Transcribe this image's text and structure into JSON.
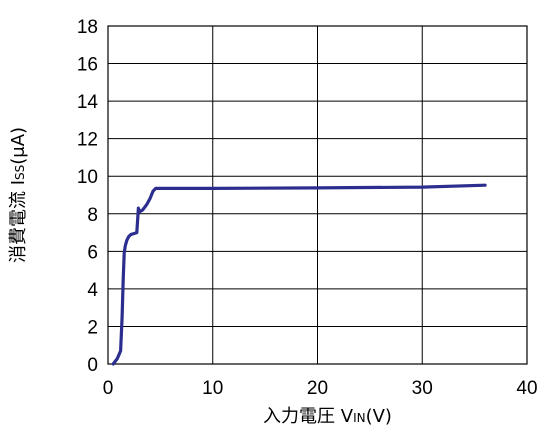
{
  "chart_data": {
    "type": "line",
    "title": "",
    "xlabel_prefix": "入力電圧 V",
    "xlabel_sub": "IN",
    "xlabel_suffix": "(V)",
    "ylabel_prefix": "消費電流 I",
    "ylabel_sub": "SS",
    "ylabel_suffix": "(μA)",
    "xlim": [
      0,
      40
    ],
    "ylim": [
      0,
      18
    ],
    "xticks": [
      0,
      10,
      20,
      30,
      40
    ],
    "yticks": [
      0,
      2,
      4,
      6,
      8,
      10,
      12,
      14,
      16,
      18
    ],
    "xtick_labels": [
      "0",
      "10",
      "20",
      "30",
      "40"
    ],
    "ytick_labels": [
      "0",
      "2",
      "4",
      "6",
      "8",
      "10",
      "12",
      "14",
      "16",
      "18"
    ],
    "grid": true,
    "series": [
      {
        "color": "#2b2e8f",
        "x": [
          0.5,
          0.9,
          1.2,
          1.35,
          1.45,
          1.55,
          1.65,
          1.8,
          2.0,
          2.2,
          2.5,
          2.75,
          2.9,
          3.0,
          3.3,
          3.7,
          4.0,
          4.3,
          4.55,
          5.0,
          10,
          20,
          30,
          36
        ],
        "y": [
          0.0,
          0.3,
          0.7,
          2.5,
          4.5,
          5.9,
          6.3,
          6.6,
          6.8,
          6.9,
          6.95,
          7.0,
          8.3,
          8.1,
          8.2,
          8.5,
          8.8,
          9.2,
          9.35,
          9.35,
          9.35,
          9.38,
          9.42,
          9.52
        ]
      }
    ]
  }
}
